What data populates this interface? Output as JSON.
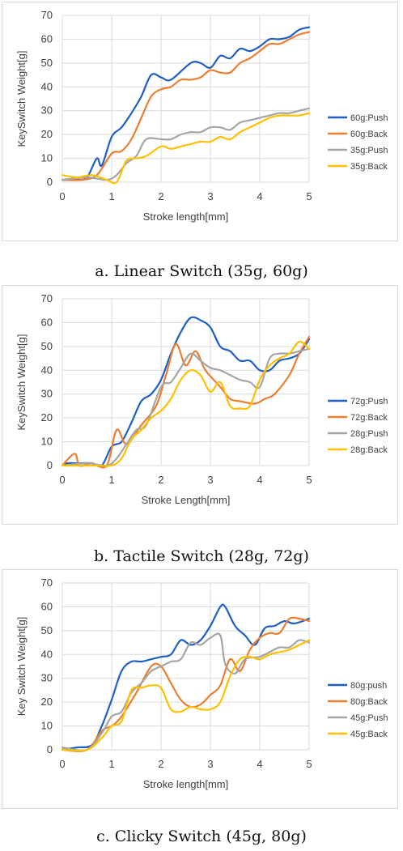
{
  "captions": {
    "a": "a.  Linear Switch (35g, 60g)",
    "b": "b.  Tactile Switch (28g, 72g)",
    "c": "c.  Clicky Switch (45g, 80g)"
  },
  "chart_data": [
    {
      "type": "line",
      "xlabel": "Stroke length[mm]",
      "ylabel": "KeySwitch Weight[g]",
      "xlim": [
        0,
        5
      ],
      "ylim": [
        0,
        70
      ],
      "xticks": [
        0,
        1,
        2,
        3,
        4,
        5
      ],
      "yticks": [
        0,
        10,
        20,
        30,
        40,
        50,
        60,
        70
      ],
      "grid": true,
      "legend": "right",
      "series": [
        {
          "name": "60g:Push",
          "color": "#1f5fc4",
          "x": [
            0,
            0.3,
            0.5,
            0.7,
            0.8,
            1.0,
            1.2,
            1.4,
            1.6,
            1.8,
            2.0,
            2.2,
            2.6,
            2.8,
            3.0,
            3.2,
            3.4,
            3.6,
            3.8,
            4.0,
            4.2,
            4.4,
            4.6,
            4.8,
            5.0
          ],
          "y": [
            1,
            1,
            2,
            10,
            7,
            19,
            23,
            29,
            36,
            45,
            44,
            43,
            50,
            50,
            48,
            53,
            52,
            56,
            55,
            57,
            60,
            60,
            61,
            64,
            65
          ]
        },
        {
          "name": "60g:Back",
          "color": "#ed7d31",
          "x": [
            0,
            0.4,
            0.7,
            1.0,
            1.2,
            1.4,
            1.6,
            1.8,
            2.0,
            2.2,
            2.4,
            2.6,
            2.8,
            3.0,
            3.2,
            3.4,
            3.6,
            3.8,
            4.0,
            4.2,
            4.4,
            4.6,
            4.8,
            5.0
          ],
          "y": [
            1,
            1,
            3,
            12,
            13,
            18,
            27,
            36,
            39,
            40,
            43,
            43,
            44,
            47,
            46,
            46,
            50,
            52,
            55,
            58,
            58,
            60,
            62,
            63
          ]
        },
        {
          "name": "35g:Push",
          "color": "#a5a5a5",
          "x": [
            0,
            0.5,
            0.9,
            1.1,
            1.3,
            1.5,
            1.7,
            2.0,
            2.2,
            2.4,
            2.6,
            2.8,
            3.0,
            3.2,
            3.4,
            3.6,
            3.8,
            4.0,
            4.2,
            4.4,
            4.6,
            4.8,
            5.0
          ],
          "y": [
            1,
            2,
            1,
            3,
            8,
            11,
            18,
            18,
            18,
            20,
            21,
            21,
            23,
            23,
            22,
            25,
            26,
            27,
            28,
            29,
            29,
            30,
            31
          ]
        },
        {
          "name": "35g:Back",
          "color": "#ffc000",
          "x": [
            0,
            0.3,
            0.6,
            0.9,
            1.1,
            1.3,
            1.5,
            1.7,
            2.0,
            2.2,
            2.4,
            2.6,
            2.8,
            3.0,
            3.2,
            3.4,
            3.6,
            3.8,
            4.0,
            4.2,
            4.4,
            4.6,
            4.8,
            5.0
          ],
          "y": [
            3,
            2,
            3,
            1,
            0,
            9,
            10,
            11,
            15,
            14,
            15,
            16,
            17,
            17,
            19,
            18,
            21,
            23,
            25,
            27,
            28,
            28,
            28,
            29
          ]
        }
      ]
    },
    {
      "type": "line",
      "xlabel": "Stroke Length[mm]",
      "ylabel": "KeySwitch Weight[g]",
      "xlim": [
        0,
        5
      ],
      "ylim": [
        0,
        70
      ],
      "xticks": [
        0,
        1,
        2,
        3,
        4,
        5
      ],
      "yticks": [
        0,
        10,
        20,
        30,
        40,
        50,
        60,
        70
      ],
      "grid": true,
      "legend": "right",
      "series": [
        {
          "name": "72g:Push",
          "color": "#1f5fc4",
          "x": [
            0,
            0.1,
            0.3,
            0.6,
            0.8,
            1.0,
            1.2,
            1.4,
            1.6,
            1.8,
            2.0,
            2.2,
            2.4,
            2.6,
            2.8,
            3.0,
            3.2,
            3.4,
            3.6,
            3.8,
            4.0,
            4.2,
            4.4,
            4.6,
            4.8,
            5.0
          ],
          "y": [
            0,
            1,
            1,
            1,
            0,
            8,
            10,
            18,
            27,
            30,
            36,
            47,
            56,
            62,
            61,
            58,
            50,
            48,
            44,
            44,
            40,
            40,
            44,
            45,
            47,
            53
          ]
        },
        {
          "name": "72g:Back",
          "color": "#ed7d31",
          "x": [
            0,
            0.25,
            0.35,
            0.6,
            0.9,
            1.1,
            1.3,
            1.6,
            1.9,
            2.1,
            2.3,
            2.5,
            2.7,
            2.9,
            3.2,
            3.4,
            3.6,
            3.9,
            4.1,
            4.3,
            4.6,
            4.8,
            5.0
          ],
          "y": [
            0,
            5,
            0,
            1,
            0,
            15,
            9,
            17,
            25,
            38,
            51,
            42,
            48,
            40,
            33,
            28,
            27,
            26,
            28,
            30,
            38,
            47,
            54
          ]
        },
        {
          "name": "28g:Push",
          "color": "#a5a5a5",
          "x": [
            0,
            0.5,
            0.9,
            1.1,
            1.3,
            1.5,
            1.7,
            2.0,
            2.2,
            2.4,
            2.6,
            2.8,
            3.0,
            3.2,
            3.4,
            3.6,
            3.8,
            4.0,
            4.2,
            4.4,
            4.6,
            4.8,
            5.0
          ],
          "y": [
            0,
            1,
            0,
            3,
            9,
            15,
            17,
            33,
            35,
            41,
            47,
            44,
            41,
            40,
            38,
            36,
            35,
            33,
            45,
            47,
            47,
            48,
            49
          ]
        },
        {
          "name": "28g:Back",
          "color": "#ffc000",
          "x": [
            0,
            0.7,
            1.0,
            1.2,
            1.4,
            1.6,
            1.8,
            2.0,
            2.2,
            2.4,
            2.6,
            2.8,
            3.0,
            3.2,
            3.4,
            3.6,
            3.8,
            4.0,
            4.2,
            4.4,
            4.6,
            4.8,
            5.0
          ],
          "y": [
            0,
            0,
            0,
            3,
            11,
            15,
            20,
            23,
            28,
            36,
            40,
            38,
            31,
            35,
            25,
            24,
            25,
            36,
            42,
            45,
            47,
            52,
            49
          ]
        }
      ]
    },
    {
      "type": "line",
      "xlabel": "Stroke length[mm]",
      "ylabel": "Key Switch Weight[g]",
      "xlim": [
        0,
        5
      ],
      "ylim": [
        0,
        70
      ],
      "xticks": [
        0,
        1,
        2,
        3,
        4,
        5
      ],
      "yticks": [
        0,
        10,
        20,
        30,
        40,
        50,
        60,
        70
      ],
      "grid": true,
      "legend": "right",
      "series": [
        {
          "name": "80g:push",
          "color": "#1f5fc4",
          "x": [
            0,
            0.3,
            0.6,
            0.8,
            1.0,
            1.2,
            1.4,
            1.6,
            1.8,
            2.0,
            2.2,
            2.4,
            2.6,
            2.8,
            3.0,
            3.2,
            3.3,
            3.5,
            3.7,
            3.9,
            4.1,
            4.3,
            4.5,
            4.7,
            5.0
          ],
          "y": [
            0,
            1,
            2,
            10,
            21,
            33,
            37,
            37,
            38,
            39,
            40,
            46,
            44,
            46,
            52,
            60,
            60,
            52,
            48,
            44,
            51,
            52,
            54,
            53,
            55
          ]
        },
        {
          "name": "80g:Back",
          "color": "#ed7d31",
          "x": [
            0,
            0.5,
            0.8,
            1.0,
            1.2,
            1.5,
            1.8,
            2.0,
            2.2,
            2.4,
            2.6,
            2.8,
            3.0,
            3.2,
            3.4,
            3.6,
            3.8,
            4.0,
            4.2,
            4.4,
            4.6,
            4.8,
            5.0
          ],
          "y": [
            0,
            0,
            8,
            10,
            14,
            24,
            35,
            35,
            28,
            21,
            18,
            19,
            23,
            27,
            38,
            33,
            42,
            47,
            49,
            49,
            55,
            55,
            54
          ]
        },
        {
          "name": "45g:Push",
          "color": "#a5a5a5",
          "x": [
            0,
            0.5,
            0.8,
            1.0,
            1.2,
            1.4,
            1.6,
            1.8,
            2.0,
            2.2,
            2.4,
            2.6,
            2.8,
            3.0,
            3.2,
            3.3,
            3.5,
            3.7,
            4.0,
            4.2,
            4.4,
            4.6,
            4.8,
            5.0
          ],
          "y": [
            1,
            0,
            7,
            14,
            16,
            24,
            28,
            33,
            35,
            37,
            38,
            45,
            44,
            47,
            48,
            36,
            32,
            38,
            39,
            41,
            43,
            43,
            46,
            45
          ]
        },
        {
          "name": "45g:Back",
          "color": "#ffc000",
          "x": [
            0,
            0.5,
            0.8,
            1.0,
            1.2,
            1.4,
            1.6,
            1.8,
            2.0,
            2.2,
            2.4,
            2.6,
            2.8,
            3.0,
            3.2,
            3.4,
            3.6,
            3.8,
            4.0,
            4.2,
            4.4,
            4.6,
            4.8,
            5.0
          ],
          "y": [
            0,
            0,
            5,
            10,
            12,
            25,
            26,
            27,
            26,
            17,
            16,
            18,
            17,
            17,
            20,
            31,
            38,
            39,
            38,
            40,
            41,
            42,
            44,
            46
          ]
        }
      ]
    }
  ]
}
